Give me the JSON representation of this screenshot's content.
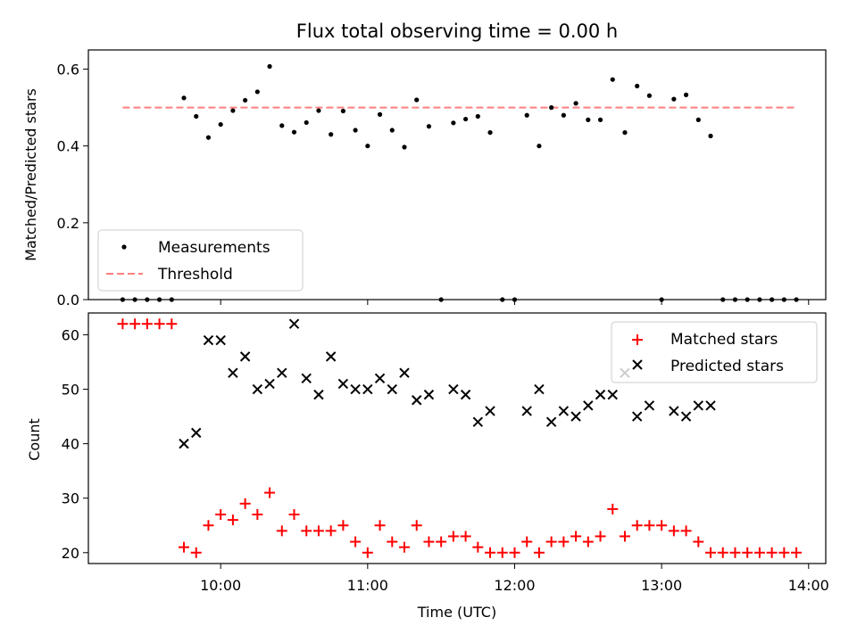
{
  "chart_data": [
    {
      "type": "scatter",
      "title": "Flux total observing time = 0.00 h",
      "xlabel": "",
      "ylabel": "Matched/Predicted stars",
      "xlim": [
        "09:06",
        "14:07"
      ],
      "ylim": [
        0,
        0.65
      ],
      "yticks": [
        0.0,
        0.2,
        0.4,
        0.6
      ],
      "ytick_labels": [
        "0.0",
        "0.2",
        "0.4",
        "0.6"
      ],
      "legend": {
        "position": "lower-left",
        "entries": [
          "Measurements",
          "Threshold"
        ]
      },
      "series": [
        {
          "name": "Measurements",
          "marker": "dot",
          "color": "#000000",
          "x": [
            "09:20",
            "09:25",
            "09:30",
            "09:35",
            "09:40",
            "09:45",
            "09:50",
            "09:55",
            "10:00",
            "10:05",
            "10:10",
            "10:15",
            "10:20",
            "10:25",
            "10:30",
            "10:35",
            "10:40",
            "10:45",
            "10:50",
            "10:55",
            "11:00",
            "11:05",
            "11:10",
            "11:15",
            "11:20",
            "11:25",
            "11:30",
            "11:35",
            "11:40",
            "11:45",
            "11:50",
            "11:55",
            "12:00",
            "12:05",
            "12:10",
            "12:15",
            "12:20",
            "12:25",
            "12:30",
            "12:35",
            "12:40",
            "12:45",
            "12:50",
            "12:55",
            "13:00",
            "13:05",
            "13:10",
            "13:15",
            "13:20",
            "13:25",
            "13:30",
            "13:35",
            "13:40",
            "13:45",
            "13:50",
            "13:55"
          ],
          "y": [
            0,
            0,
            0,
            0,
            0,
            0.525,
            0.477,
            0.422,
            0.456,
            0.492,
            0.519,
            0.541,
            0.607,
            0.453,
            0.436,
            0.461,
            0.492,
            0.43,
            0.491,
            0.441,
            0.4,
            0.482,
            0.441,
            0.397,
            0.52,
            0.451,
            0,
            0.46,
            0.47,
            0.477,
            0.435,
            0,
            0,
            0.48,
            0.4,
            0.5,
            0.48,
            0.511,
            0.468,
            0.468,
            0.573,
            0.435,
            0.556,
            0.531,
            0,
            0.522,
            0.533,
            0.468,
            0.426,
            0,
            0,
            0,
            0,
            0,
            0,
            0
          ]
        },
        {
          "name": "Threshold",
          "type": "line",
          "style": "dashed",
          "color": "#ff7f7f",
          "x": [
            "09:20",
            "13:55"
          ],
          "y": [
            0.5,
            0.5
          ]
        }
      ]
    },
    {
      "type": "scatter",
      "title": "",
      "xlabel": "Time (UTC)",
      "ylabel": "Count",
      "xlim": [
        "09:06",
        "14:07"
      ],
      "ylim": [
        18,
        64
      ],
      "yticks": [
        20,
        30,
        40,
        50,
        60
      ],
      "xtick_labels": [
        "10:00",
        "11:00",
        "12:00",
        "13:00",
        "14:00"
      ],
      "legend": {
        "position": "upper-right",
        "entries": [
          "Matched stars",
          "Predicted stars"
        ]
      },
      "series": [
        {
          "name": "Matched stars",
          "marker": "plus",
          "color": "#ff0000",
          "x": [
            "09:20",
            "09:25",
            "09:30",
            "09:35",
            "09:40",
            "09:45",
            "09:50",
            "09:55",
            "10:00",
            "10:05",
            "10:10",
            "10:15",
            "10:20",
            "10:25",
            "10:30",
            "10:35",
            "10:40",
            "10:45",
            "10:50",
            "10:55",
            "11:00",
            "11:05",
            "11:10",
            "11:15",
            "11:20",
            "11:25",
            "11:30",
            "11:35",
            "11:40",
            "11:45",
            "11:50",
            "11:55",
            "12:00",
            "12:05",
            "12:10",
            "12:15",
            "12:20",
            "12:25",
            "12:30",
            "12:35",
            "12:40",
            "12:45",
            "12:50",
            "12:55",
            "13:00",
            "13:05",
            "13:10",
            "13:15",
            "13:20",
            "13:25",
            "13:30",
            "13:35",
            "13:40",
            "13:45",
            "13:50",
            "13:55"
          ],
          "y": [
            62,
            62,
            62,
            62,
            62,
            21,
            20,
            25,
            27,
            26,
            29,
            27,
            31,
            24,
            27,
            24,
            24,
            24,
            25,
            22,
            20,
            25,
            22,
            21,
            25,
            22,
            22,
            23,
            23,
            21,
            20,
            20,
            20,
            22,
            20,
            22,
            22,
            23,
            22,
            23,
            28,
            23,
            25,
            25,
            25,
            24,
            24,
            22,
            20,
            20,
            20,
            20,
            20,
            20,
            20,
            20
          ]
        },
        {
          "name": "Predicted stars",
          "marker": "x",
          "color": "#000000",
          "x": [
            "09:45",
            "09:50",
            "09:55",
            "10:00",
            "10:05",
            "10:10",
            "10:15",
            "10:20",
            "10:25",
            "10:30",
            "10:35",
            "10:40",
            "10:45",
            "10:50",
            "10:55",
            "11:00",
            "11:05",
            "11:10",
            "11:15",
            "11:20",
            "11:25",
            "11:35",
            "11:40",
            "11:45",
            "11:50",
            "12:05",
            "12:10",
            "12:15",
            "12:20",
            "12:25",
            "12:30",
            "12:35",
            "12:40",
            "12:45",
            "12:50",
            "12:55",
            "13:05",
            "13:10",
            "13:15",
            "13:20"
          ],
          "y": [
            40,
            42,
            59,
            59,
            53,
            56,
            50,
            51,
            53,
            62,
            52,
            49,
            56,
            51,
            50,
            50,
            52,
            50,
            53,
            48,
            49,
            50,
            49,
            44,
            46,
            46,
            50,
            44,
            46,
            45,
            47,
            49,
            49,
            53,
            45,
            47,
            46,
            45,
            47,
            47
          ]
        }
      ]
    }
  ]
}
